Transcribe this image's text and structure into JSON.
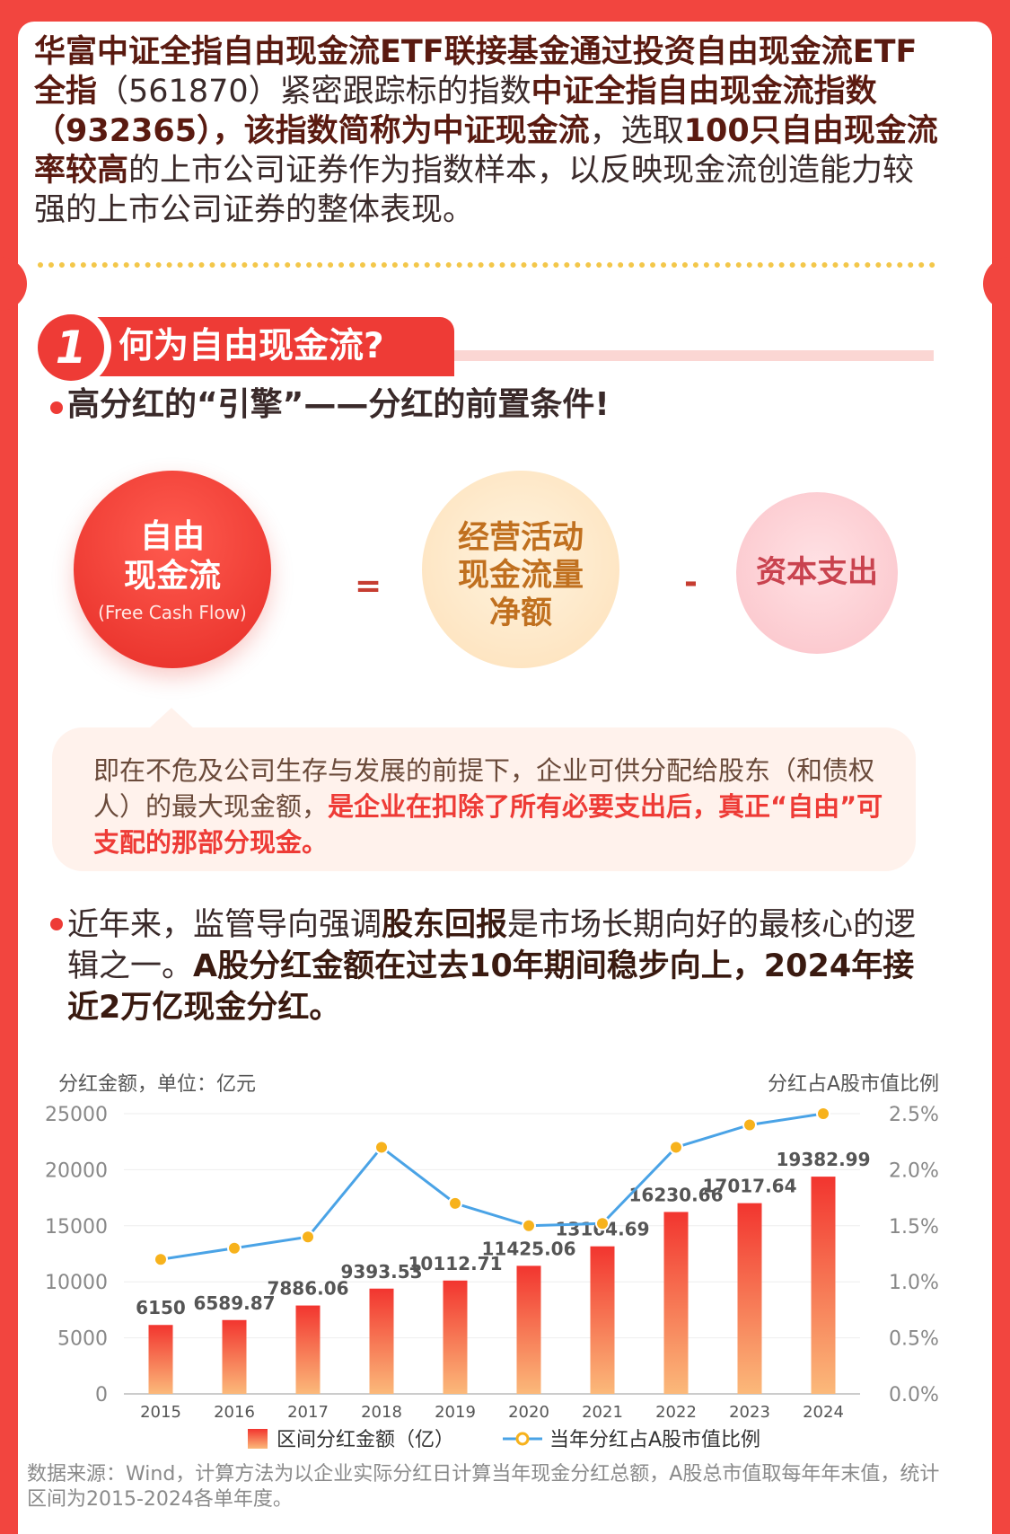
{
  "intro": {
    "s1": "华富中证全指自由现金流ETF联接基金通过投资自由现金流ETF全指",
    "s2": "（561870）紧密跟踪标的指数",
    "s3": "中证全指自由现金流指数",
    "s4": "（932365）",
    "s5": "，该指数简称为中证现金流",
    "s6": "，选取",
    "s7": "100只自由现金流率较高",
    "s8": "的上市公司证券作为指数样本，以反映现金流创造能力较强的上市公司证券的整体表现。"
  },
  "section": {
    "number": "1",
    "title": "何为自由现金流?"
  },
  "subtitle": "高分红的“引擎”——分红的前置条件!",
  "formula": {
    "fcf_line1": "自由",
    "fcf_line2": "现金流",
    "fcf_en": "(Free Cash Flow)",
    "equals": "=",
    "ocf_line1": "经营活动",
    "ocf_line2": "现金流量",
    "ocf_line3": "净额",
    "minus": "-",
    "capex": "资本支出"
  },
  "definition": {
    "normal": "即在不危及公司生存与发展的前提下，企业可供分配给股东（和债权人）的最大现金额，",
    "highlight": "是企业在扣除了所有必要支出后，真正“自由”可支配的那部分现金。"
  },
  "para2": {
    "a": "近年来，监管导向强调",
    "b": "股东回报",
    "c": "是市场长期向好的最核心的逻辑之一。",
    "d": "A股分红金额在过去10年期间稳步向上，2024年接近2万亿现金分红。"
  },
  "colors": {
    "accent": "#ee3b36",
    "bar_top": "#f2352f",
    "bar_bottom": "#fbb97a",
    "line": "#4aa3e6",
    "marker": "#f7b21c"
  },
  "chart_data": {
    "type": "bar",
    "title": "",
    "ylabel": "分红金额，单位：亿元",
    "ylabel_right": "分红占A股市值比例",
    "categories": [
      "2015",
      "2016",
      "2017",
      "2018",
      "2019",
      "2020",
      "2021",
      "2022",
      "2023",
      "2024"
    ],
    "ylim": [
      0,
      25000
    ],
    "y_ticks": [
      "0",
      "5000",
      "10000",
      "15000",
      "20000",
      "25000"
    ],
    "y2lim": [
      0,
      2.5
    ],
    "y2_ticks": [
      "0.0%",
      "0.5%",
      "1.0%",
      "1.5%",
      "2.0%",
      "2.5%"
    ],
    "series": [
      {
        "name": "区间分红金额（亿）",
        "type": "bar",
        "values": [
          6150,
          6589.87,
          7886.06,
          9393.53,
          10112.71,
          11425.06,
          13164.69,
          16230.66,
          17017.64,
          19382.99
        ],
        "labels": [
          "6150",
          "6589.87",
          "7886.06",
          "9393.53",
          "10112.71",
          "11425.06",
          "13164.69",
          "16230.66",
          "17017.64",
          "19382.99"
        ]
      },
      {
        "name": "当年分红占A股市值比例",
        "type": "line",
        "axis": "right",
        "values": [
          1.2,
          1.3,
          1.4,
          2.2,
          1.7,
          1.5,
          1.52,
          2.2,
          2.4,
          2.5
        ]
      }
    ],
    "legend": "bottom",
    "grid": true
  },
  "source_note": "数据来源：Wind，计算方法为以企业实际分红日计算当年现金分红总额，A股总市值取每年年末值，统计区间为2015-2024各单年度。"
}
